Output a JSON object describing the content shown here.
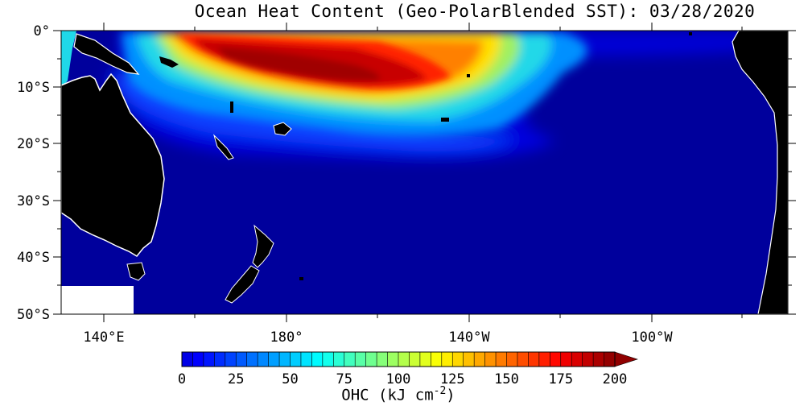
{
  "map": {
    "title": "Ocean Heat Content (Geo-PolarBlended SST): 03/28/2020",
    "lat_labels": [
      "0°",
      "10°S",
      "20°S",
      "30°S",
      "40°S",
      "50°S"
    ],
    "lon_labels": [
      "140°E",
      "180°",
      "140°W",
      "100°W"
    ],
    "colors": {
      "ocean_deep": "#00009c",
      "land": "#000000",
      "nodata": "#ffffff"
    }
  },
  "colorbar": {
    "tick_labels": [
      "0",
      "25",
      "50",
      "75",
      "100",
      "125",
      "150",
      "175",
      "200"
    ],
    "title_main": "OHC (kJ cm",
    "title_exp": "-2",
    "title_end": ")",
    "min": 0,
    "max": 200,
    "extend": "max"
  }
}
